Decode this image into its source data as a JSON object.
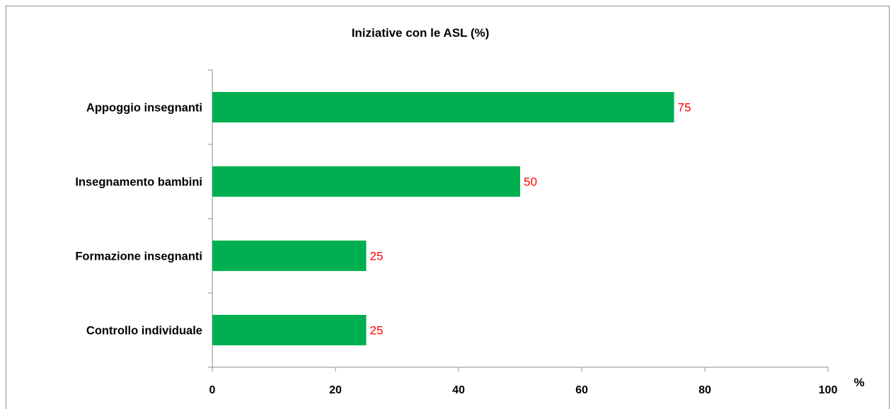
{
  "chart_data": {
    "type": "bar",
    "orientation": "horizontal",
    "title": "Iniziative con le ASL (%)",
    "categories": [
      "Appoggio insegnanti",
      "Insegnamento bambini",
      "Formazione insegnanti",
      "Controllo individuale"
    ],
    "values": [
      75,
      50,
      25,
      25
    ],
    "xlabel": "%",
    "xlim": [
      0,
      100
    ],
    "xticks": [
      0,
      20,
      40,
      60,
      80,
      100
    ],
    "grid": false,
    "legend": "none",
    "bar_color": "#00b050",
    "data_label_color": "#ff0000"
  }
}
